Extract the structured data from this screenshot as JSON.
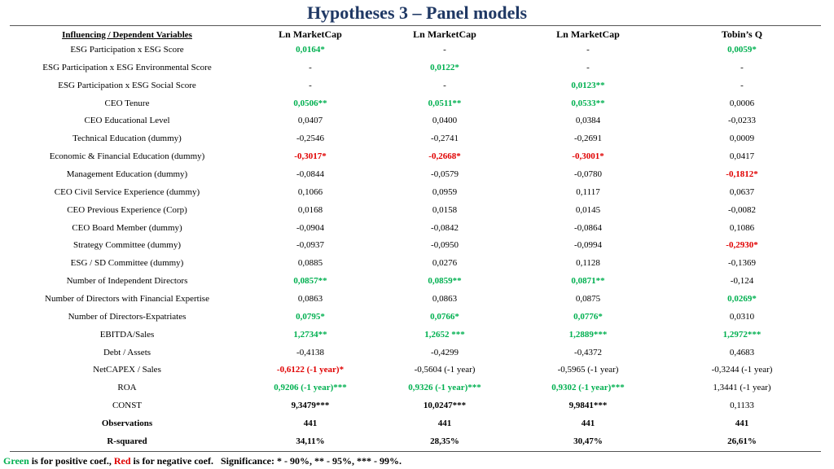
{
  "slide": {
    "title": "Hypotheses 3 – Panel models"
  },
  "table": {
    "header": {
      "variables": "Influencing / Dependent Variables",
      "cols": [
        "Ln MarketCap",
        "Ln MarketCap",
        "Ln MarketCap",
        "Tobin’s Q"
      ]
    },
    "rows": [
      {
        "label": "ESG Participation x ESG Score",
        "cells": [
          {
            "v": "0,0164*",
            "s": "pos"
          },
          {
            "v": "-",
            "s": ""
          },
          {
            "v": "-",
            "s": ""
          },
          {
            "v": "0,0059*",
            "s": "pos"
          }
        ]
      },
      {
        "label": "ESG Participation x ESG Environmental Score",
        "cells": [
          {
            "v": "-",
            "s": ""
          },
          {
            "v": "0,0122*",
            "s": "pos"
          },
          {
            "v": "-",
            "s": ""
          },
          {
            "v": "-",
            "s": ""
          }
        ]
      },
      {
        "label": "ESG Participation x ESG Social Score",
        "cells": [
          {
            "v": "-",
            "s": ""
          },
          {
            "v": "-",
            "s": ""
          },
          {
            "v": "0,0123**",
            "s": "pos"
          },
          {
            "v": "-",
            "s": ""
          }
        ]
      },
      {
        "label": "CEO Tenure",
        "cells": [
          {
            "v": "0,0506**",
            "s": "pos"
          },
          {
            "v": "0,0511**",
            "s": "pos"
          },
          {
            "v": "0,0533**",
            "s": "pos"
          },
          {
            "v": "0,0006",
            "s": ""
          }
        ]
      },
      {
        "label": "CEO Educational Level",
        "cells": [
          {
            "v": "0,0407",
            "s": ""
          },
          {
            "v": "0,0400",
            "s": ""
          },
          {
            "v": "0,0384",
            "s": ""
          },
          {
            "v": "-0,0233",
            "s": ""
          }
        ]
      },
      {
        "label": "Technical Education (dummy)",
        "cells": [
          {
            "v": "-0,2546",
            "s": ""
          },
          {
            "v": "-0,2741",
            "s": ""
          },
          {
            "v": "-0,2691",
            "s": ""
          },
          {
            "v": "0,0009",
            "s": ""
          }
        ]
      },
      {
        "label": "Economic & Financial Education (dummy)",
        "cells": [
          {
            "v": "-0,3017*",
            "s": "neg"
          },
          {
            "v": "-0,2668*",
            "s": "neg"
          },
          {
            "v": "-0,3001*",
            "s": "neg"
          },
          {
            "v": "0,0417",
            "s": ""
          }
        ]
      },
      {
        "label": "Management Education (dummy)",
        "cells": [
          {
            "v": "-0,0844",
            "s": ""
          },
          {
            "v": "-0,0579",
            "s": ""
          },
          {
            "v": "-0,0780",
            "s": ""
          },
          {
            "v": "-0,1812*",
            "s": "neg"
          }
        ]
      },
      {
        "label": "CEO Civil Service Experience (dummy)",
        "cells": [
          {
            "v": "0,1066",
            "s": ""
          },
          {
            "v": "0,0959",
            "s": ""
          },
          {
            "v": "0,1117",
            "s": ""
          },
          {
            "v": "0,0637",
            "s": ""
          }
        ]
      },
      {
        "label": "CEO Previous Experience (Corp)",
        "cells": [
          {
            "v": "0,0168",
            "s": ""
          },
          {
            "v": "0,0158",
            "s": ""
          },
          {
            "v": "0,0145",
            "s": ""
          },
          {
            "v": "-0,0082",
            "s": ""
          }
        ]
      },
      {
        "label": "CEO Board Member (dummy)",
        "cells": [
          {
            "v": "-0,0904",
            "s": ""
          },
          {
            "v": "-0,0842",
            "s": ""
          },
          {
            "v": "-0,0864",
            "s": ""
          },
          {
            "v": "0,1086",
            "s": ""
          }
        ]
      },
      {
        "label": "Strategy Committee (dummy)",
        "cells": [
          {
            "v": "-0,0937",
            "s": ""
          },
          {
            "v": "-0,0950",
            "s": ""
          },
          {
            "v": "-0,0994",
            "s": ""
          },
          {
            "v": "-0,2930*",
            "s": "neg"
          }
        ]
      },
      {
        "label": "ESG / SD Committee (dummy)",
        "cells": [
          {
            "v": "0,0885",
            "s": ""
          },
          {
            "v": "0,0276",
            "s": ""
          },
          {
            "v": "0,1128",
            "s": ""
          },
          {
            "v": "-0,1369",
            "s": ""
          }
        ]
      },
      {
        "label": "Number of Independent Directors",
        "cells": [
          {
            "v": "0,0857**",
            "s": "pos"
          },
          {
            "v": "0,0859**",
            "s": "pos"
          },
          {
            "v": "0,0871**",
            "s": "pos"
          },
          {
            "v": "-0,124",
            "s": ""
          }
        ]
      },
      {
        "label": "Number of Directors with Financial Expertise",
        "cells": [
          {
            "v": "0,0863",
            "s": ""
          },
          {
            "v": "0,0863",
            "s": ""
          },
          {
            "v": "0,0875",
            "s": ""
          },
          {
            "v": "0,0269*",
            "s": "pos"
          }
        ]
      },
      {
        "label": "Number of Directors-Expatriates",
        "cells": [
          {
            "v": "0,0795*",
            "s": "pos"
          },
          {
            "v": "0,0766*",
            "s": "pos"
          },
          {
            "v": "0,0776*",
            "s": "pos"
          },
          {
            "v": "0,0310",
            "s": ""
          }
        ]
      },
      {
        "label": "EBITDA/Sales",
        "cells": [
          {
            "v": "1,2734**",
            "s": "pos"
          },
          {
            "v": "1,2652 ***",
            "s": "pos"
          },
          {
            "v": "1,2889***",
            "s": "pos"
          },
          {
            "v": "1,2972***",
            "s": "pos"
          }
        ]
      },
      {
        "label": "Debt / Assets",
        "cells": [
          {
            "v": "-0,4138",
            "s": ""
          },
          {
            "v": "-0,4299",
            "s": ""
          },
          {
            "v": "-0,4372",
            "s": ""
          },
          {
            "v": "0,4683",
            "s": ""
          }
        ]
      },
      {
        "label": "NetCAPEX / Sales",
        "cells": [
          {
            "v": "-0,6122 (-1 year)*",
            "s": "neg"
          },
          {
            "v": "-0,5604 (-1 year)",
            "s": ""
          },
          {
            "v": "-0,5965 (-1 year)",
            "s": ""
          },
          {
            "v": "-0,3244 (-1 year)",
            "s": ""
          }
        ]
      },
      {
        "label": "ROA",
        "cells": [
          {
            "v": "0,9206 (-1 year)***",
            "s": "pos"
          },
          {
            "v": "0,9326 (-1 year)***",
            "s": "pos"
          },
          {
            "v": "0,9302 (-1 year)***",
            "s": "pos"
          },
          {
            "v": "1,3441 (-1 year)",
            "s": ""
          }
        ]
      },
      {
        "label": "CONST",
        "cells": [
          {
            "v": "9,3479***",
            "s": "bold"
          },
          {
            "v": "10,0247***",
            "s": "bold"
          },
          {
            "v": "9,9841***",
            "s": "bold"
          },
          {
            "v": "0,1133",
            "s": ""
          }
        ]
      },
      {
        "label": "Observations",
        "labelBold": true,
        "cells": [
          {
            "v": "441",
            "s": "bold"
          },
          {
            "v": "441",
            "s": "bold"
          },
          {
            "v": "441",
            "s": "bold"
          },
          {
            "v": "441",
            "s": "bold"
          }
        ]
      },
      {
        "label": "R-squared",
        "labelBold": true,
        "cells": [
          {
            "v": "34,11%",
            "s": "bold"
          },
          {
            "v": "28,35%",
            "s": "bold"
          },
          {
            "v": "30,47%",
            "s": "bold"
          },
          {
            "v": "26,61%",
            "s": "bold"
          }
        ]
      }
    ]
  },
  "footnote": {
    "green_word": "Green",
    "green_text": " is for positive coef., ",
    "red_word": "Red",
    "red_text": " is for negative coef.",
    "significance": "Significance: * - 90%, ** - 95%, *** - 99%."
  },
  "colors": {
    "title": "#1f3864",
    "positive": "#00b050",
    "negative": "#e00000"
  }
}
